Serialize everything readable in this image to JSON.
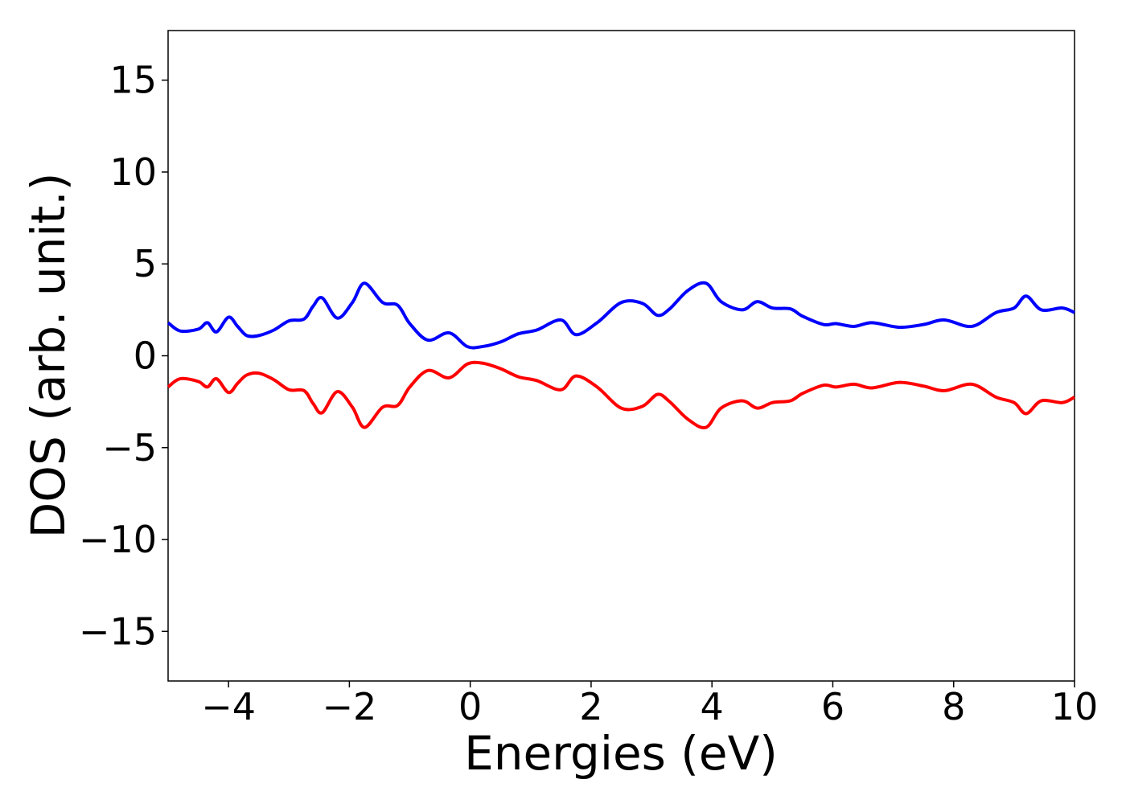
{
  "chart_data": {
    "type": "line",
    "xlabel": "Energies (eV)",
    "ylabel": "DOS (arb. unit.)",
    "xlim": [
      -5,
      10
    ],
    "ylim": [
      -17.7,
      17.7
    ],
    "xticks": [
      -4,
      -2,
      0,
      2,
      4,
      6,
      8,
      10
    ],
    "xtick_labels": [
      "−4",
      "−2",
      "0",
      "2",
      "4",
      "6",
      "8",
      "10"
    ],
    "yticks": [
      15,
      10,
      5,
      0,
      -5,
      -10,
      -15
    ],
    "ytick_labels": [
      "15",
      "10",
      "5",
      "0",
      "−5",
      "−10",
      "−15"
    ],
    "grid": false,
    "legend": "none",
    "series": [
      {
        "color": "#0000ff",
        "x": [
          -5.0,
          -4.8,
          -4.5,
          -4.35,
          -4.2,
          -4.0,
          -3.85,
          -3.7,
          -3.5,
          -3.25,
          -3.0,
          -2.75,
          -2.6,
          -2.45,
          -2.2,
          -1.95,
          -1.75,
          -1.45,
          -1.2,
          -1.0,
          -0.7,
          -0.35,
          -0.05,
          0.2,
          0.5,
          0.8,
          1.1,
          1.5,
          1.75,
          2.1,
          2.5,
          2.85,
          3.1,
          3.3,
          3.6,
          3.9,
          4.15,
          4.5,
          4.75,
          5.0,
          5.3,
          5.5,
          5.85,
          6.05,
          6.35,
          6.65,
          7.1,
          7.5,
          7.85,
          8.3,
          8.7,
          9.0,
          9.2,
          9.45,
          9.8,
          10.0
        ],
        "y": [
          1.8,
          1.35,
          1.45,
          1.8,
          1.3,
          2.1,
          1.6,
          1.1,
          1.1,
          1.4,
          1.9,
          2.0,
          2.7,
          3.15,
          2.05,
          2.9,
          3.95,
          2.9,
          2.75,
          1.75,
          0.85,
          1.25,
          0.5,
          0.5,
          0.75,
          1.2,
          1.4,
          1.95,
          1.15,
          1.8,
          2.9,
          2.85,
          2.2,
          2.55,
          3.55,
          3.95,
          2.95,
          2.5,
          2.95,
          2.6,
          2.55,
          2.15,
          1.7,
          1.75,
          1.6,
          1.8,
          1.55,
          1.7,
          1.95,
          1.6,
          2.35,
          2.6,
          3.25,
          2.5,
          2.6,
          2.35
        ]
      },
      {
        "color": "#ff0000",
        "x": [
          -5.0,
          -4.8,
          -4.5,
          -4.35,
          -4.2,
          -4.0,
          -3.85,
          -3.7,
          -3.5,
          -3.25,
          -3.0,
          -2.75,
          -2.6,
          -2.45,
          -2.2,
          -1.95,
          -1.75,
          -1.45,
          -1.2,
          -1.0,
          -0.7,
          -0.35,
          -0.05,
          0.2,
          0.5,
          0.8,
          1.1,
          1.5,
          1.75,
          2.1,
          2.5,
          2.85,
          3.1,
          3.3,
          3.6,
          3.9,
          4.15,
          4.5,
          4.75,
          5.0,
          5.3,
          5.5,
          5.85,
          6.05,
          6.35,
          6.65,
          7.1,
          7.5,
          7.85,
          8.3,
          8.7,
          9.0,
          9.2,
          9.45,
          9.8,
          10.0
        ],
        "y": [
          -1.7,
          -1.25,
          -1.4,
          -1.7,
          -1.25,
          -2.0,
          -1.5,
          -1.05,
          -0.95,
          -1.3,
          -1.85,
          -1.9,
          -2.6,
          -3.1,
          -1.95,
          -2.8,
          -3.9,
          -2.8,
          -2.7,
          -1.7,
          -0.8,
          -1.2,
          -0.45,
          -0.4,
          -0.7,
          -1.15,
          -1.35,
          -1.85,
          -1.1,
          -1.7,
          -2.85,
          -2.75,
          -2.1,
          -2.5,
          -3.45,
          -3.9,
          -2.85,
          -2.45,
          -2.85,
          -2.55,
          -2.45,
          -2.05,
          -1.6,
          -1.7,
          -1.55,
          -1.75,
          -1.45,
          -1.65,
          -1.9,
          -1.55,
          -2.25,
          -2.55,
          -3.15,
          -2.45,
          -2.55,
          -2.25
        ]
      }
    ]
  }
}
